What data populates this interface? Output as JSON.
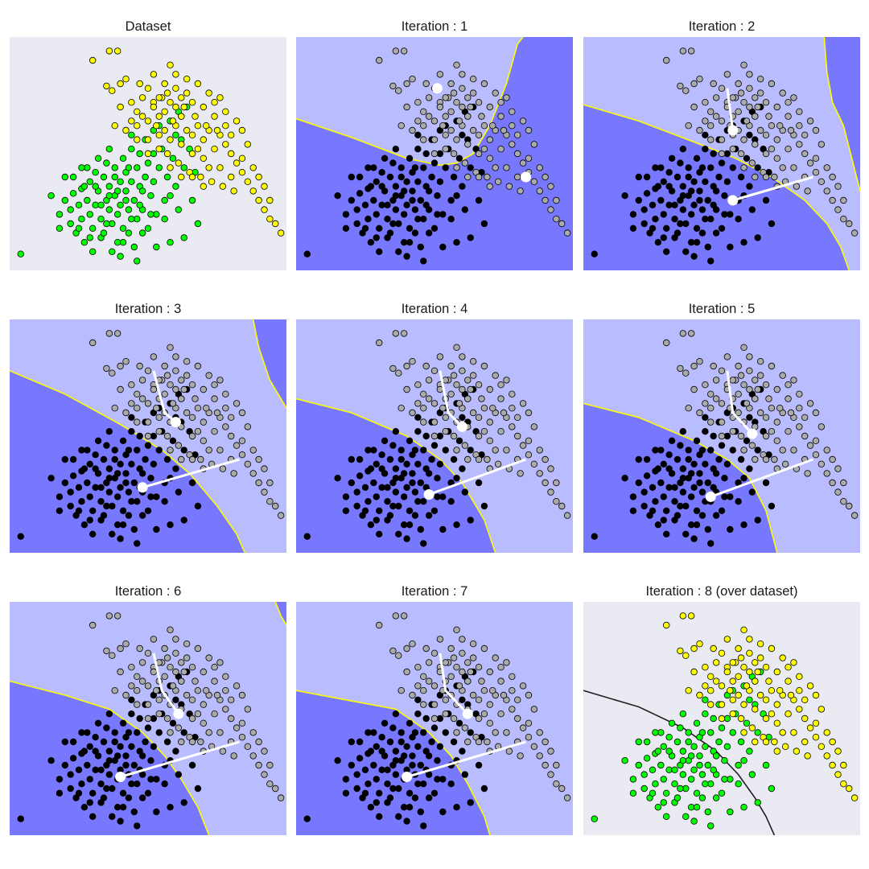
{
  "figure": {
    "background": "#ffffff"
  },
  "chart_data": {
    "type": "scatter",
    "grid": false,
    "xlim": [
      0,
      100
    ],
    "ylim": [
      0,
      100
    ],
    "colors": {
      "panel_bg": "#eaeaf2",
      "region_light": "#b9bcff",
      "region_dark": "#7878ff",
      "boundary_iter": "#ffff00",
      "boundary_final": "#222222",
      "class_a_dataset": "#00ff00",
      "class_b_dataset": "#ffff00",
      "class_a_iter": "#000000",
      "class_b_iter": "#aaaaaa",
      "centroid": "#ffffff",
      "point_edge": "#000000"
    },
    "points": {
      "class_a": [
        [
          4,
          7
        ],
        [
          15,
          32
        ],
        [
          18,
          24
        ],
        [
          20,
          30
        ],
        [
          22,
          20
        ],
        [
          22,
          26
        ],
        [
          23,
          33
        ],
        [
          24,
          16
        ],
        [
          25,
          28
        ],
        [
          26,
          22
        ],
        [
          26,
          35
        ],
        [
          27,
          12
        ],
        [
          28,
          30
        ],
        [
          29,
          38
        ],
        [
          29,
          24
        ],
        [
          30,
          18
        ],
        [
          31,
          42
        ],
        [
          31,
          28
        ],
        [
          32,
          34
        ],
        [
          33,
          22
        ],
        [
          33,
          14
        ],
        [
          34,
          40
        ],
        [
          35,
          30
        ],
        [
          35,
          46
        ],
        [
          36,
          26
        ],
        [
          36,
          36
        ],
        [
          37,
          20
        ],
        [
          38,
          44
        ],
        [
          38,
          32
        ],
        [
          39,
          12
        ],
        [
          39,
          24
        ],
        [
          40,
          38
        ],
        [
          40,
          28
        ],
        [
          41,
          48
        ],
        [
          41,
          18
        ],
        [
          42,
          34
        ],
        [
          42,
          42
        ],
        [
          43,
          26
        ],
        [
          43,
          16
        ],
        [
          44,
          52
        ],
        [
          44,
          38
        ],
        [
          45,
          30
        ],
        [
          45,
          10
        ],
        [
          46,
          44
        ],
        [
          46,
          22
        ],
        [
          47,
          36
        ],
        [
          47,
          50
        ],
        [
          48,
          26
        ],
        [
          49,
          40
        ],
        [
          49,
          56
        ],
        [
          50,
          46
        ],
        [
          50,
          18
        ],
        [
          51,
          32
        ],
        [
          52,
          60
        ],
        [
          52,
          38
        ],
        [
          53,
          24
        ],
        [
          54,
          44
        ],
        [
          55,
          52
        ],
        [
          56,
          30
        ],
        [
          57,
          40
        ],
        [
          58,
          64
        ],
        [
          59,
          48
        ],
        [
          60,
          36
        ],
        [
          61,
          26
        ],
        [
          62,
          56
        ],
        [
          63,
          44
        ],
        [
          64,
          70
        ],
        [
          65,
          52
        ],
        [
          66,
          30
        ],
        [
          67,
          42
        ],
        [
          68,
          20
        ],
        [
          34,
          16
        ],
        [
          30,
          8
        ],
        [
          37,
          8
        ],
        [
          40,
          6
        ],
        [
          46,
          4
        ],
        [
          48,
          16
        ],
        [
          28,
          44
        ],
        [
          25,
          18
        ],
        [
          20,
          40
        ],
        [
          54,
          62
        ],
        [
          58,
          32
        ],
        [
          61,
          68
        ],
        [
          44,
          58
        ],
        [
          36,
          52
        ],
        [
          32,
          48
        ],
        [
          18,
          18
        ],
        [
          23,
          40
        ],
        [
          27,
          36
        ],
        [
          42,
          30
        ],
        [
          47,
          28
        ],
        [
          51,
          24
        ],
        [
          39,
          34
        ],
        [
          35,
          20
        ],
        [
          43,
          44
        ],
        [
          56,
          22
        ],
        [
          60,
          58
        ],
        [
          33,
          28
        ],
        [
          26,
          44
        ],
        [
          53,
          10
        ],
        [
          63,
          14
        ],
        [
          58,
          12
        ],
        [
          41,
          12
        ],
        [
          29,
          14
        ],
        [
          44,
          22
        ],
        [
          31,
          36
        ],
        [
          38,
          40
        ],
        [
          52,
          50
        ],
        [
          48,
          34
        ],
        [
          36,
          32
        ]
      ],
      "class_b": [
        [
          30,
          90
        ],
        [
          36,
          94
        ],
        [
          39,
          94
        ],
        [
          35,
          79
        ],
        [
          37,
          77
        ],
        [
          40,
          80
        ],
        [
          42,
          82
        ],
        [
          47,
          80
        ],
        [
          50,
          78
        ],
        [
          55,
          74
        ],
        [
          58,
          72
        ],
        [
          60,
          70
        ],
        [
          52,
          72
        ],
        [
          48,
          74
        ],
        [
          44,
          72
        ],
        [
          40,
          70
        ],
        [
          38,
          62
        ],
        [
          42,
          60
        ],
        [
          46,
          62
        ],
        [
          50,
          64
        ],
        [
          54,
          66
        ],
        [
          56,
          60
        ],
        [
          60,
          62
        ],
        [
          62,
          66
        ],
        [
          64,
          60
        ],
        [
          66,
          58
        ],
        [
          68,
          62
        ],
        [
          70,
          56
        ],
        [
          72,
          60
        ],
        [
          74,
          66
        ],
        [
          76,
          58
        ],
        [
          78,
          54
        ],
        [
          80,
          50
        ],
        [
          82,
          46
        ],
        [
          84,
          42
        ],
        [
          86,
          38
        ],
        [
          88,
          34
        ],
        [
          90,
          30
        ],
        [
          92,
          26
        ],
        [
          94,
          22
        ],
        [
          96,
          20
        ],
        [
          98,
          16
        ],
        [
          78,
          62
        ],
        [
          74,
          52
        ],
        [
          70,
          48
        ],
        [
          66,
          50
        ],
        [
          62,
          54
        ],
        [
          58,
          56
        ],
        [
          54,
          58
        ],
        [
          50,
          56
        ],
        [
          57,
          50
        ],
        [
          61,
          46
        ],
        [
          65,
          42
        ],
        [
          69,
          40
        ],
        [
          73,
          38
        ],
        [
          77,
          36
        ],
        [
          81,
          34
        ],
        [
          56,
          68
        ],
        [
          52,
          70
        ],
        [
          46,
          68
        ],
        [
          64,
          76
        ],
        [
          60,
          78
        ],
        [
          68,
          52
        ],
        [
          72,
          44
        ],
        [
          76,
          44
        ],
        [
          80,
          40
        ],
        [
          59,
          64
        ],
        [
          63,
          70
        ],
        [
          67,
          66
        ],
        [
          71,
          62
        ],
        [
          75,
          60
        ],
        [
          66,
          72
        ],
        [
          62,
          74
        ],
        [
          70,
          70
        ],
        [
          48,
          66
        ],
        [
          44,
          64
        ],
        [
          53,
          62
        ],
        [
          57,
          76
        ],
        [
          84,
          48
        ],
        [
          88,
          44
        ],
        [
          86,
          54
        ],
        [
          80,
          58
        ],
        [
          90,
          40
        ],
        [
          92,
          36
        ],
        [
          94,
          30
        ],
        [
          74,
          72
        ],
        [
          78,
          68
        ],
        [
          82,
          64
        ],
        [
          84,
          60
        ],
        [
          66,
          40
        ],
        [
          70,
          36
        ],
        [
          58,
          44
        ],
        [
          62,
          40
        ],
        [
          54,
          52
        ],
        [
          50,
          50
        ],
        [
          46,
          56
        ],
        [
          56,
          80
        ],
        [
          60,
          84
        ],
        [
          64,
          82
        ],
        [
          68,
          80
        ],
        [
          72,
          76
        ],
        [
          76,
          74
        ],
        [
          52,
          84
        ],
        [
          58,
          88
        ],
        [
          62,
          66
        ],
        [
          54,
          74
        ]
      ]
    },
    "panels": [
      {
        "title": "Dataset",
        "mode": "dataset",
        "boundary": null,
        "centroid_paths": []
      },
      {
        "title": "Iteration : 1",
        "mode": "iter",
        "regions": "light-above",
        "boundary": [
          [
            0,
            65
          ],
          [
            20,
            57
          ],
          [
            40,
            48
          ],
          [
            52,
            45
          ],
          [
            58,
            46
          ],
          [
            64,
            50
          ],
          [
            70,
            62
          ],
          [
            76,
            80
          ],
          [
            80,
            97
          ],
          [
            82,
            100
          ]
        ],
        "centroid_paths": [
          [
            [
              51,
              78
            ]
          ],
          [
            [
              83,
              40
            ]
          ]
        ]
      },
      {
        "title": "Iteration : 2",
        "mode": "iter",
        "regions": "light-above",
        "boundary": [
          [
            0,
            71
          ],
          [
            20,
            64
          ],
          [
            40,
            55
          ],
          [
            55,
            48
          ],
          [
            68,
            40
          ],
          [
            80,
            30
          ],
          [
            88,
            20
          ],
          [
            93,
            10
          ],
          [
            96,
            0
          ]
        ],
        "boundary2": [
          [
            87,
            100
          ],
          [
            88,
            85
          ],
          [
            90,
            72
          ],
          [
            94,
            62
          ],
          [
            100,
            34
          ]
        ],
        "centroid_paths": [
          [
            [
              52,
              78
            ],
            [
              54,
              60
            ]
          ],
          [
            [
              83,
              40
            ],
            [
              54,
              30
            ]
          ]
        ]
      },
      {
        "title": "Iteration : 3",
        "mode": "iter",
        "regions": "light-above",
        "boundary": [
          [
            0,
            78
          ],
          [
            20,
            68
          ],
          [
            40,
            55
          ],
          [
            55,
            44
          ],
          [
            65,
            34
          ],
          [
            75,
            20
          ],
          [
            82,
            8
          ],
          [
            85,
            0
          ]
        ],
        "boundary2": [
          [
            88,
            100
          ],
          [
            90,
            88
          ],
          [
            94,
            74
          ],
          [
            100,
            62
          ]
        ],
        "centroid_paths": [
          [
            [
              52,
              78
            ],
            [
              56,
              60
            ],
            [
              60,
              56
            ]
          ],
          [
            [
              83,
              40
            ],
            [
              48,
              28
            ]
          ]
        ]
      },
      {
        "title": "Iteration : 4",
        "mode": "iter",
        "regions": "light-above",
        "boundary": [
          [
            0,
            66
          ],
          [
            20,
            60
          ],
          [
            40,
            50
          ],
          [
            52,
            40
          ],
          [
            60,
            30
          ],
          [
            68,
            14
          ],
          [
            72,
            0
          ]
        ],
        "boundary2": [],
        "centroid_paths": [
          [
            [
              52,
              78
            ],
            [
              55,
              60
            ],
            [
              60,
              54
            ]
          ],
          [
            [
              83,
              40
            ],
            [
              48,
              25
            ]
          ]
        ]
      },
      {
        "title": "Iteration : 5",
        "mode": "iter",
        "regions": "light-above",
        "boundary": [
          [
            0,
            64
          ],
          [
            20,
            58
          ],
          [
            40,
            48
          ],
          [
            52,
            40
          ],
          [
            60,
            32
          ],
          [
            66,
            18
          ],
          [
            70,
            0
          ]
        ],
        "boundary2": [],
        "centroid_paths": [
          [
            [
              52,
              78
            ],
            [
              54,
              60
            ],
            [
              61,
              51
            ]
          ],
          [
            [
              83,
              40
            ],
            [
              46,
              24
            ]
          ]
        ]
      },
      {
        "title": "Iteration : 6",
        "mode": "iter",
        "regions": "light-above",
        "boundary": [
          [
            0,
            66
          ],
          [
            20,
            60
          ],
          [
            36,
            54
          ],
          [
            48,
            44
          ],
          [
            56,
            34
          ],
          [
            62,
            24
          ],
          [
            68,
            12
          ],
          [
            72,
            0
          ]
        ],
        "boundary2": [
          [
            96,
            100
          ],
          [
            98,
            94
          ],
          [
            100,
            90
          ]
        ],
        "centroid_paths": [
          [
            [
              52,
              78
            ],
            [
              55,
              62
            ],
            [
              61,
              52
            ]
          ],
          [
            [
              83,
              40
            ],
            [
              40,
              25
            ]
          ]
        ]
      },
      {
        "title": "Iteration : 7",
        "mode": "iter",
        "regions": "light-above",
        "boundary": [
          [
            0,
            62
          ],
          [
            18,
            58
          ],
          [
            36,
            54
          ],
          [
            48,
            44
          ],
          [
            56,
            34
          ],
          [
            62,
            22
          ],
          [
            68,
            8
          ],
          [
            70,
            0
          ]
        ],
        "boundary2": [],
        "centroid_paths": [
          [
            [
              52,
              78
            ],
            [
              54,
              62
            ],
            [
              62,
              52
            ]
          ],
          [
            [
              83,
              40
            ],
            [
              40,
              25
            ]
          ]
        ]
      },
      {
        "title": "Iteration : 8  (over dataset)",
        "mode": "final",
        "boundary": [
          [
            0,
            62
          ],
          [
            20,
            55
          ],
          [
            36,
            46
          ],
          [
            48,
            36
          ],
          [
            56,
            26
          ],
          [
            62,
            16
          ],
          [
            66,
            8
          ],
          [
            69,
            0
          ]
        ],
        "centroid_paths": []
      }
    ]
  }
}
